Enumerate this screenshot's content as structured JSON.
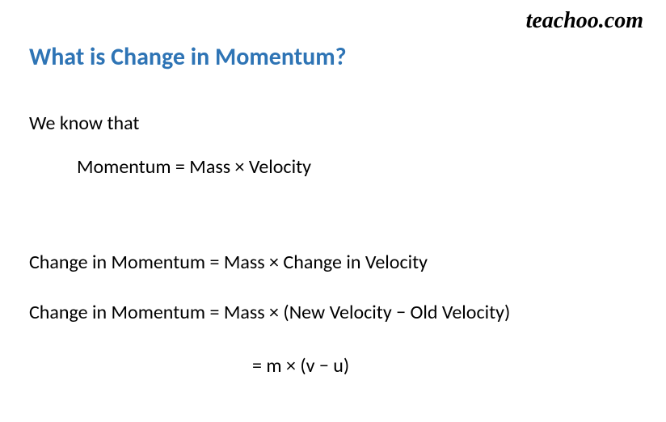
{
  "watermark": "teachoo.com",
  "heading": "What is Change in  Momentum?",
  "content": {
    "intro": "We know that",
    "formula1": "Momentum = Mass × Velocity",
    "formula2": "Change in Momentum = Mass × Change in Velocity",
    "formula3": "Change in Momentum = Mass × (New Velocity − Old Velocity)",
    "formula4": "= m × (v − u)"
  },
  "style": {
    "heading_color": "#2e74b5",
    "heading_fontsize": 30,
    "body_fontsize": 24,
    "body_color": "#000000",
    "background_color": "#ffffff",
    "watermark_fontsize": 28
  }
}
